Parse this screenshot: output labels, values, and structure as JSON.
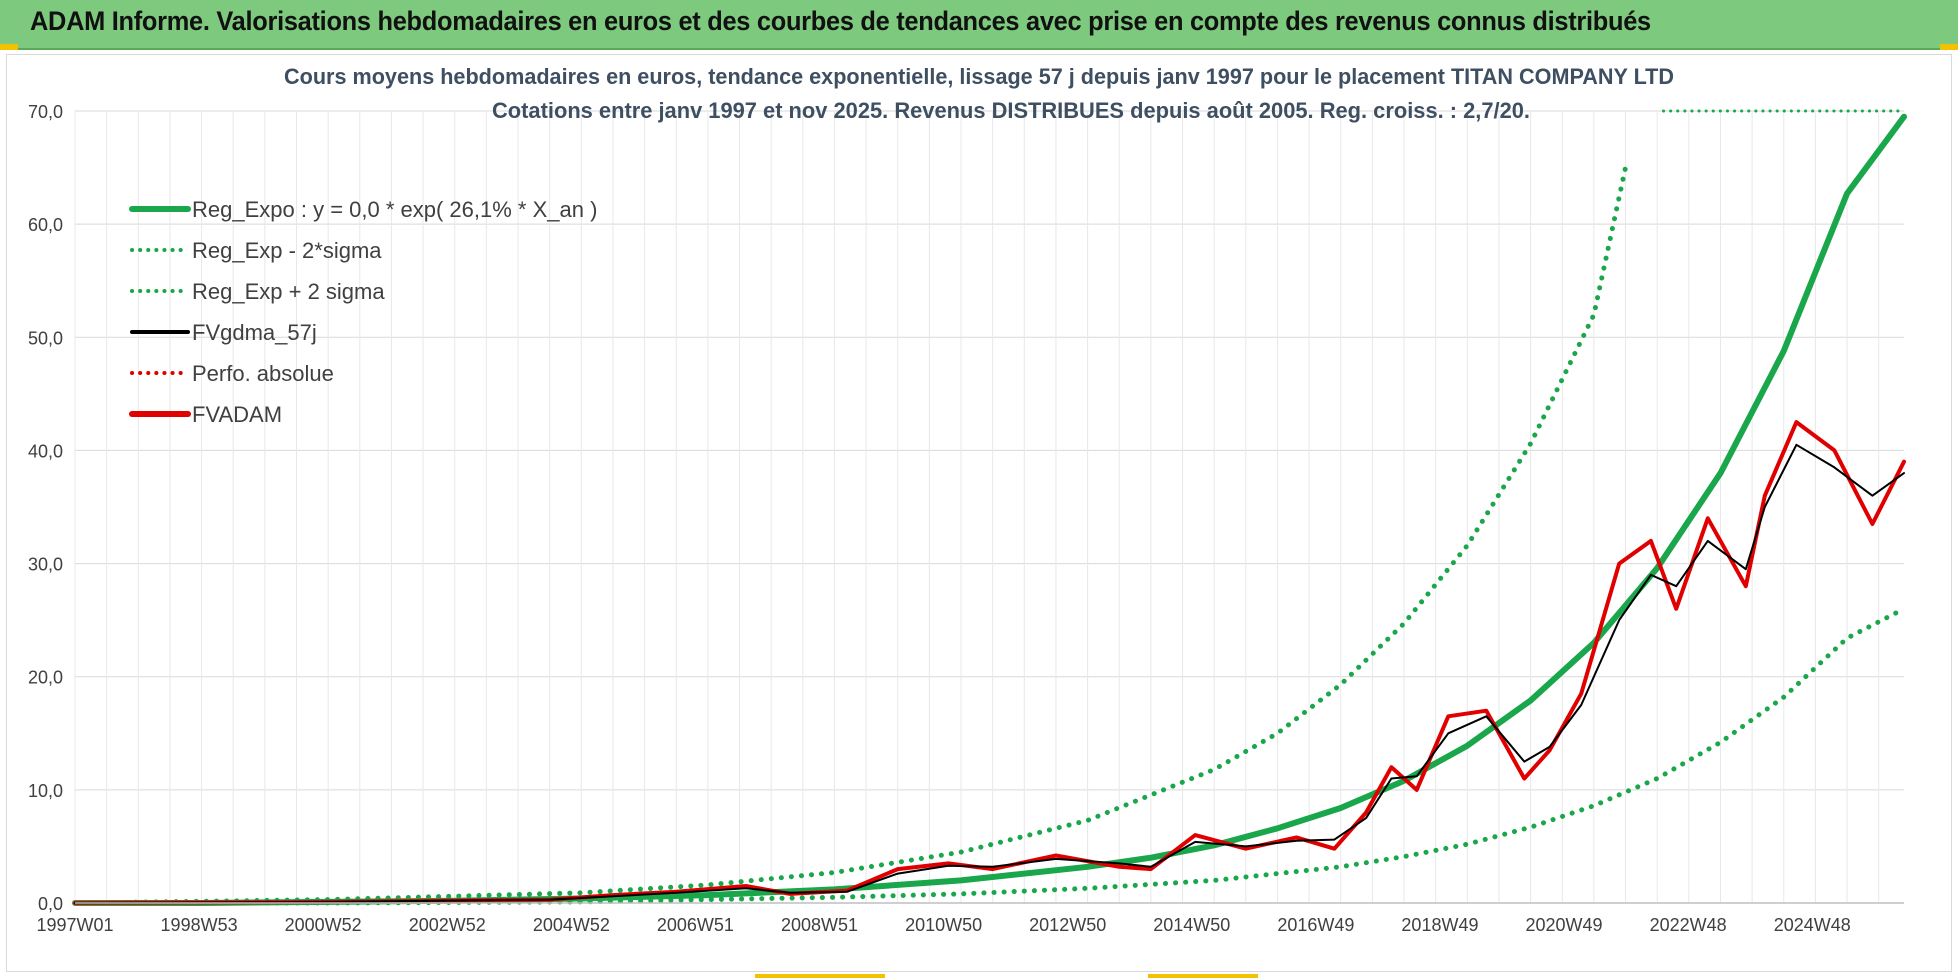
{
  "banner": {
    "title": "ADAM Informe. Valorisations hebdomadaires en euros et des courbes de tendances avec prise en compte des revenus connus distribués"
  },
  "colors": {
    "banner_bg": "#7dc97d",
    "reg_expo": "#1aa64b",
    "sigma": "#1aa64b",
    "fvgdma": "#000000",
    "perfo": "#e00000",
    "fvadam": "#e00000",
    "grid": "#d9d9d9"
  },
  "chart_data": {
    "type": "line",
    "title_line1": "Cours moyens hebdomadaires en euros, tendance exponentielle, lissage 57 j depuis janv 1997 pour le placement TITAN COMPANY LTD",
    "title_line2": "Cotations entre janv 1997 et nov 2025. Revenus DISTRIBUES depuis août 2005. Reg. croiss. : 2,7/20.",
    "xlabel": "",
    "ylabel": "",
    "x_unit": "year",
    "xlim": [
      1997.0,
      2025.9
    ],
    "ylim": [
      0,
      70
    ],
    "y_ticks": [
      "0,0",
      "10,0",
      "20,0",
      "30,0",
      "40,0",
      "50,0",
      "60,0",
      "70,0"
    ],
    "x_tick_labels": [
      "1997W01",
      "1998W53",
      "2000W52",
      "2002W52",
      "2004W52",
      "2006W51",
      "2008W51",
      "2010W50",
      "2012W50",
      "2014W50",
      "2016W49",
      "2018W49",
      "2020W49",
      "2022W48",
      "2024W48"
    ],
    "grid": true,
    "legend_position": "top-left",
    "legend": [
      {
        "name": "Reg_Expo : y = 0,0 * exp( 26,1% *  X_an )",
        "style": "solid-thick",
        "color": "#1aa64b"
      },
      {
        "name": "Reg_Exp - 2*sigma",
        "style": "dotted",
        "color": "#1aa64b"
      },
      {
        "name": "Reg_Exp + 2 sigma",
        "style": "dotted",
        "color": "#1aa64b"
      },
      {
        "name": "FVgdma_57j",
        "style": "solid",
        "color": "#000000"
      },
      {
        "name": "Perfo. absolue",
        "style": "dotted",
        "color": "#e00000"
      },
      {
        "name": "FVADAM",
        "style": "solid-thick",
        "color": "#e00000"
      }
    ],
    "series": [
      {
        "name": "Reg_Expo",
        "x": [
          1997.0,
          1999.0,
          2001.0,
          2003.0,
          2005.0,
          2007.0,
          2009.0,
          2011.0,
          2013.0,
          2014.0,
          2015.0,
          2016.0,
          2017.0,
          2018.0,
          2019.0,
          2020.0,
          2021.0,
          2022.0,
          2023.0,
          2024.0,
          2025.0,
          2025.9
        ],
        "values": [
          0.0,
          0.0,
          0.1,
          0.2,
          0.4,
          0.7,
          1.2,
          2.0,
          3.2,
          4.0,
          5.1,
          6.6,
          8.4,
          10.8,
          13.9,
          17.9,
          23.0,
          29.6,
          38.0,
          48.8,
          62.7,
          69.5
        ]
      },
      {
        "name": "Reg_Exp - 2*sigma",
        "x": [
          1997.0,
          2001.0,
          2005.0,
          2007.0,
          2009.0,
          2011.0,
          2013.0,
          2015.0,
          2017.0,
          2018.0,
          2019.0,
          2020.0,
          2021.0,
          2022.0,
          2023.0,
          2024.0,
          2025.0,
          2025.9
        ],
        "values": [
          0.0,
          0.0,
          0.1,
          0.3,
          0.5,
          0.8,
          1.3,
          2.0,
          3.2,
          4.1,
          5.2,
          6.7,
          8.6,
          11.0,
          14.2,
          18.2,
          23.4,
          26.0
        ]
      },
      {
        "name": "Reg_Exp + 2 sigma",
        "x": [
          1997.0,
          2001.0,
          2005.0,
          2007.0,
          2009.0,
          2011.0,
          2013.0,
          2015.0,
          2016.0,
          2017.0,
          2018.0,
          2019.0,
          2020.0,
          2021.0,
          2021.5
        ],
        "values": [
          0.0,
          0.3,
          0.9,
          1.6,
          2.7,
          4.5,
          7.3,
          11.8,
          15.0,
          19.3,
          24.7,
          31.6,
          40.6,
          52.0,
          65.0
        ]
      },
      {
        "name": "Reg_Exp + 2 sigma (cap)",
        "x": [
          2022.1,
          2025.9
        ],
        "values": [
          70.0,
          70.0
        ]
      },
      {
        "name": "FVgdma_57j",
        "x": [
          1997.0,
          2001.0,
          2004.5,
          2005.5,
          2006.5,
          2007.6,
          2008.3,
          2009.2,
          2010.0,
          2010.8,
          2011.5,
          2012.5,
          2013.5,
          2014.0,
          2014.7,
          2015.5,
          2016.3,
          2016.9,
          2017.4,
          2017.8,
          2018.2,
          2018.7,
          2019.3,
          2019.9,
          2020.3,
          2020.8,
          2021.4,
          2021.9,
          2022.3,
          2022.8,
          2023.4,
          2023.7,
          2024.2,
          2024.8,
          2025.4,
          2025.9
        ],
        "values": [
          0.0,
          0.1,
          0.3,
          0.6,
          0.9,
          1.3,
          0.9,
          1.0,
          2.6,
          3.3,
          3.2,
          3.9,
          3.5,
          3.2,
          5.4,
          5.0,
          5.5,
          5.6,
          7.5,
          11.0,
          11.2,
          15.0,
          16.5,
          12.5,
          13.8,
          17.5,
          25.0,
          29.0,
          28.0,
          32.0,
          29.5,
          35.0,
          40.5,
          38.5,
          36.0,
          38.0
        ]
      },
      {
        "name": "FVADAM",
        "x": [
          1997.0,
          2001.0,
          2004.5,
          2005.5,
          2006.5,
          2007.6,
          2008.3,
          2009.2,
          2010.0,
          2010.8,
          2011.5,
          2012.5,
          2013.5,
          2014.0,
          2014.7,
          2015.5,
          2016.3,
          2016.9,
          2017.4,
          2017.8,
          2018.2,
          2018.7,
          2019.3,
          2019.9,
          2020.3,
          2020.8,
          2021.4,
          2021.9,
          2022.3,
          2022.8,
          2023.4,
          2023.7,
          2024.2,
          2024.8,
          2025.4,
          2025.9
        ],
        "values": [
          0.0,
          0.1,
          0.3,
          0.7,
          1.0,
          1.5,
          0.8,
          1.1,
          3.0,
          3.5,
          3.0,
          4.2,
          3.2,
          3.0,
          6.0,
          4.8,
          5.8,
          4.8,
          8.0,
          12.0,
          10.0,
          16.5,
          17.0,
          11.0,
          13.5,
          18.5,
          30.0,
          32.0,
          26.0,
          34.0,
          28.0,
          36.0,
          42.5,
          40.0,
          33.5,
          39.0
        ]
      }
    ]
  }
}
